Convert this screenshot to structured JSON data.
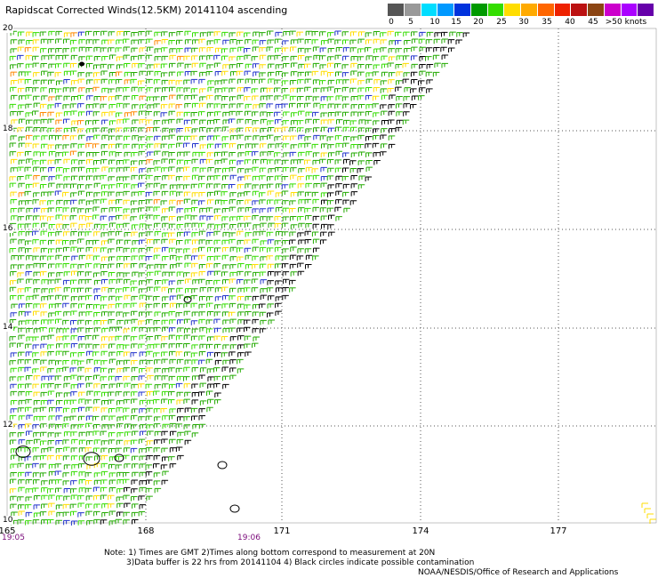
{
  "title": "Rapidscat Corrected Winds(12.5KM) 20141104 ascending",
  "legend": {
    "colors": [
      "#555555",
      "#999999",
      "#00ddff",
      "#0099ff",
      "#0033dd",
      "#009900",
      "#33dd00",
      "#ffdd00",
      "#ffaa00",
      "#ff6600",
      "#ee2200",
      "#bb1111",
      "#8b4513",
      "#cc00cc",
      "#aa00ff",
      "#6600aa"
    ],
    "labels": [
      "0",
      "5",
      "10",
      "15",
      "20",
      "25",
      "30",
      "35",
      "40",
      "45",
      ">50 knots"
    ]
  },
  "axes": {
    "lat_ticks": [
      "20",
      "18",
      "16",
      "14",
      "12",
      "10"
    ],
    "lon_ticks": [
      "165",
      "168",
      "171",
      "174",
      "177"
    ],
    "time_labels": [
      "19:05",
      "19:06"
    ]
  },
  "notes": {
    "line1": "Note: 1) Times are GMT 2)Times along bottom correspond to measurement at 20N",
    "line2": "3)Data buffer is 22 hrs from 20141104 4) Black circles indicate possible contamination",
    "line3": "NOAA/NESDIS/Office of Research and Applications"
  },
  "colors": {
    "grid": "#555555",
    "wind_main": "#22aa00",
    "wind_light": "#33dd00",
    "wind_yellow": "#ffdd00",
    "wind_orange": "#ff8800",
    "wind_blue": "#2233cc",
    "wind_black": "#000000",
    "time_label": "#7a0a7a"
  }
}
